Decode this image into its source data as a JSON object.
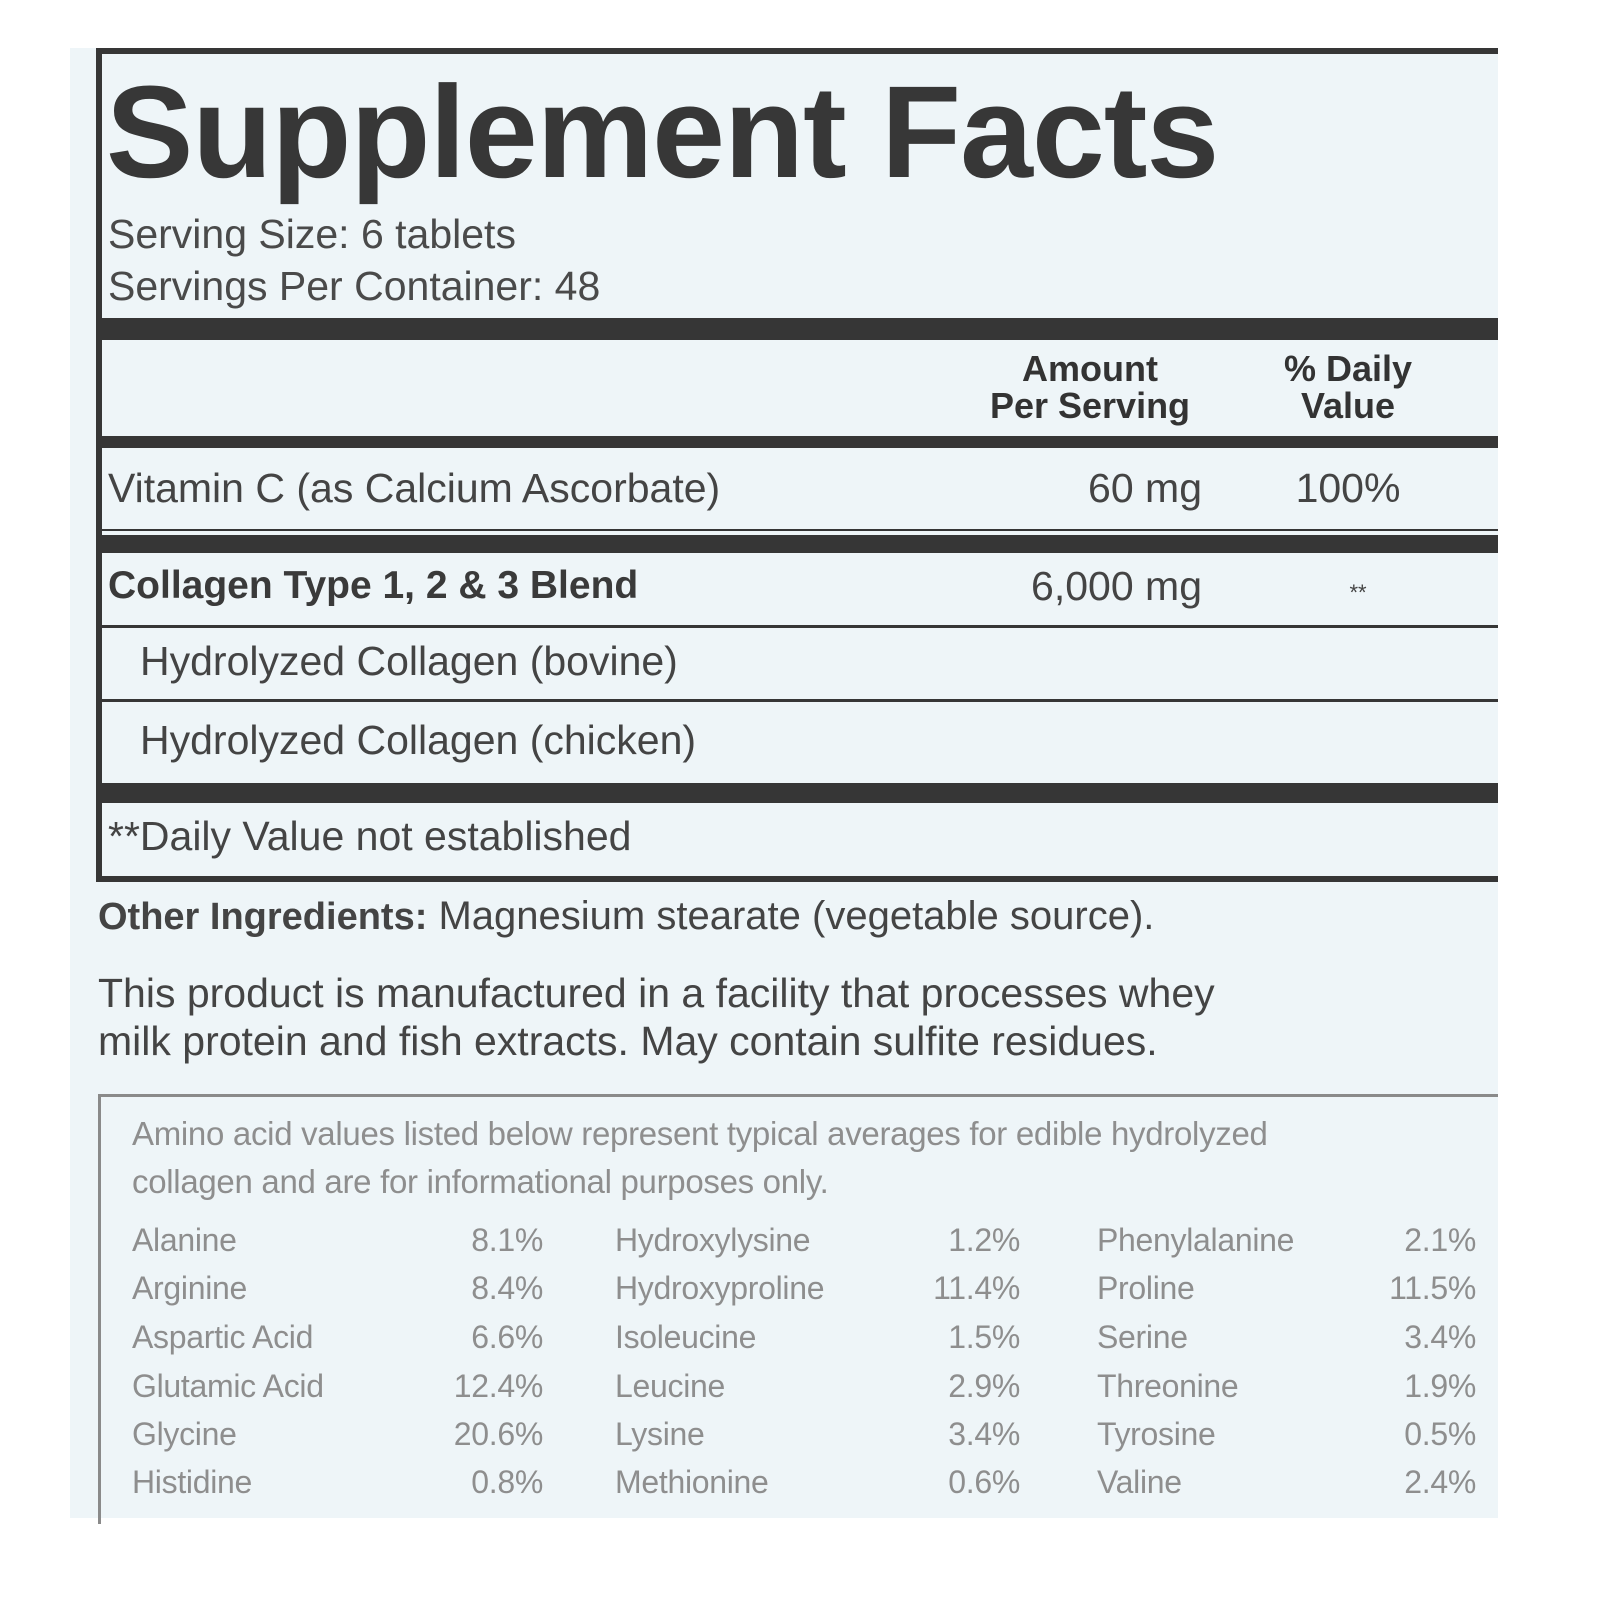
{
  "title": "Supplement Facts",
  "serving_size": "Serving Size: 6 tablets",
  "servings_per_container": "Servings Per Container: 48",
  "header": {
    "amount_line1": "Amount",
    "amount_line2": "Per Serving",
    "dv_line1": "% Daily",
    "dv_line2": "Value"
  },
  "rows": [
    {
      "name": "Vitamin C (as Calcium Ascorbate)",
      "amount": "60 mg",
      "dv": "100%"
    },
    {
      "name": "Collagen Type 1, 2 & 3 Blend",
      "amount": "6,000 mg",
      "dv": "**"
    },
    {
      "name": "Hydrolyzed Collagen (bovine)"
    },
    {
      "name": "Hydrolyzed Collagen (chicken)"
    }
  ],
  "footnote": "**Daily Value not established",
  "other_ingredients": {
    "label": "Other Ingredients:",
    "text": " Magnesium stearate (vegetable source)."
  },
  "allergen_line1": "This product is manufactured in a facility that processes whey",
  "allergen_line2": "milk protein and fish extracts. May contain sulfite residues.",
  "amino": {
    "intro_line1": "Amino acid values listed below represent typical averages for edible hydrolyzed",
    "intro_line2": "collagen and are for informational purposes only.",
    "columns": [
      [
        {
          "name": "Alanine",
          "value": "8.1%"
        },
        {
          "name": "Arginine",
          "value": "8.4%"
        },
        {
          "name": "Aspartic Acid",
          "value": "6.6%"
        },
        {
          "name": "Glutamic Acid",
          "value": "12.4%"
        },
        {
          "name": "Glycine",
          "value": "20.6%"
        },
        {
          "name": "Histidine",
          "value": "0.8%"
        }
      ],
      [
        {
          "name": "Hydroxylysine",
          "value": "1.2%"
        },
        {
          "name": "Hydroxyproline",
          "value": "11.4%"
        },
        {
          "name": "Isoleucine",
          "value": "1.5%"
        },
        {
          "name": "Leucine",
          "value": "2.9%"
        },
        {
          "name": "Lysine",
          "value": "3.4%"
        },
        {
          "name": "Methionine",
          "value": "0.6%"
        }
      ],
      [
        {
          "name": "Phenylalanine",
          "value": "2.1%"
        },
        {
          "name": "Proline",
          "value": "11.5%"
        },
        {
          "name": "Serine",
          "value": "3.4%"
        },
        {
          "name": "Threonine",
          "value": "1.9%"
        },
        {
          "name": "Tyrosine",
          "value": "0.5%"
        },
        {
          "name": "Valine",
          "value": "2.4%"
        }
      ]
    ]
  }
}
